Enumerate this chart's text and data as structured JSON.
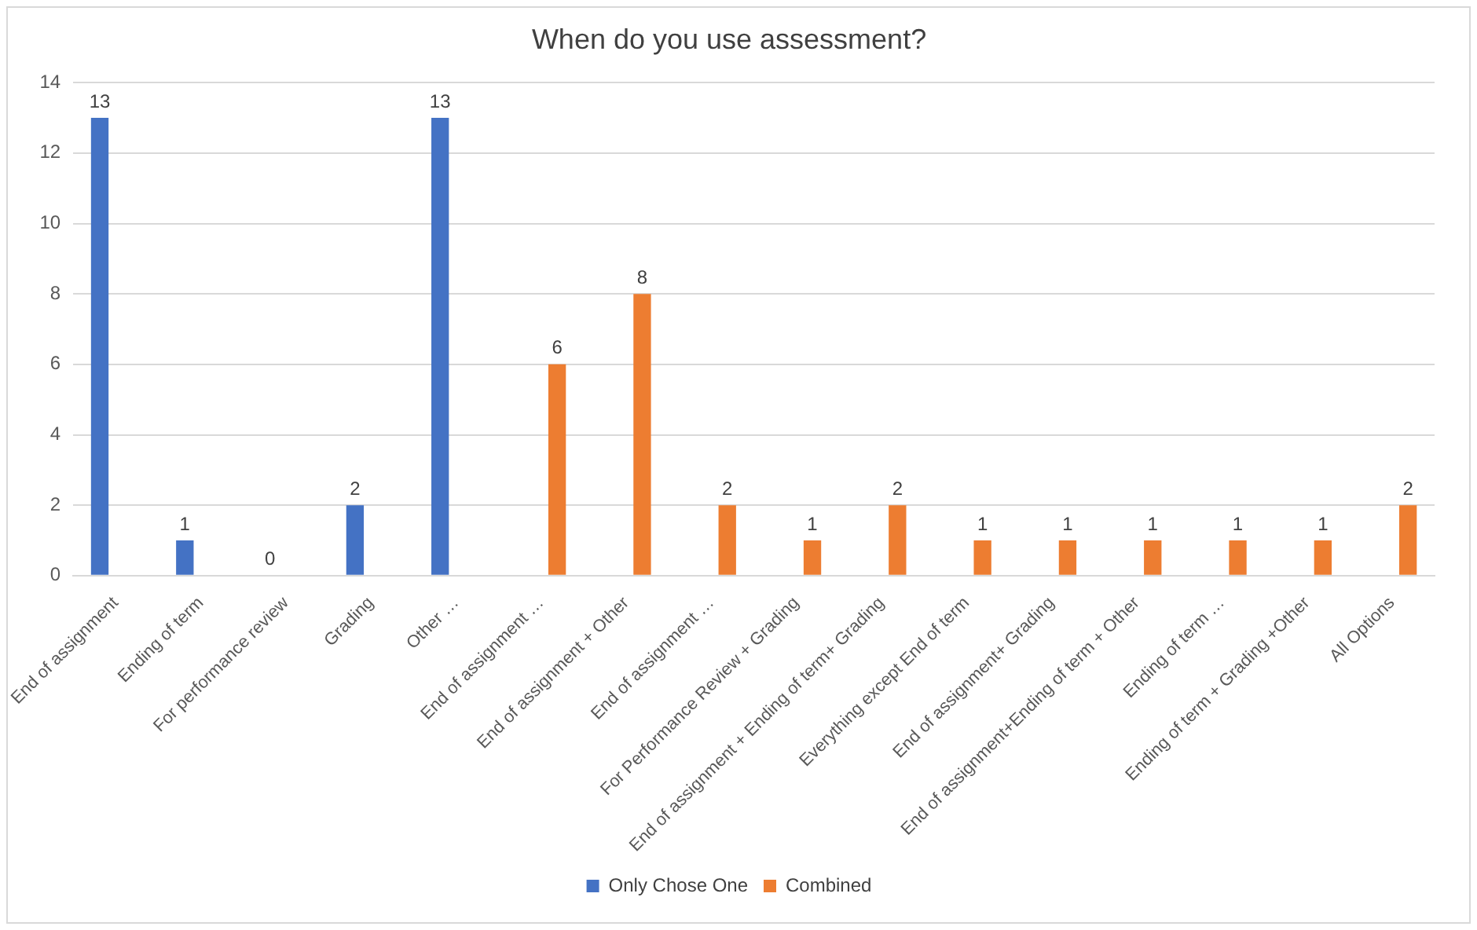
{
  "chart_data": {
    "type": "bar",
    "title": "When do you use assessment?",
    "categories": [
      "End of assignment",
      "Ending of term",
      "For performance review",
      "Grading",
      "Other …",
      "End of assignment …",
      "End of assignment + Other",
      "End of assignment …",
      "For Performance Review + Grading",
      "End of assignment + Ending of term+ Grading",
      "Everything except End of term",
      "End of assignment+ Grading",
      "End of assignment+Ending of term + Other",
      "Ending of term …",
      "Ending of term + Grading +Other",
      "All Options"
    ],
    "series": [
      {
        "name": "Only Chose One",
        "color": "#4472c4",
        "values": [
          13,
          1,
          0,
          2,
          13,
          null,
          null,
          null,
          null,
          null,
          null,
          null,
          null,
          null,
          null,
          null
        ]
      },
      {
        "name": "Combined",
        "color": "#ed7d31",
        "values": [
          null,
          null,
          null,
          null,
          null,
          6,
          8,
          2,
          1,
          2,
          1,
          1,
          1,
          1,
          1,
          2
        ]
      }
    ],
    "ylim": [
      0,
      14
    ],
    "yticks": [
      0,
      2,
      4,
      6,
      8,
      10,
      12,
      14
    ],
    "grid": "y",
    "legend": "bottom",
    "data_labels": true
  }
}
